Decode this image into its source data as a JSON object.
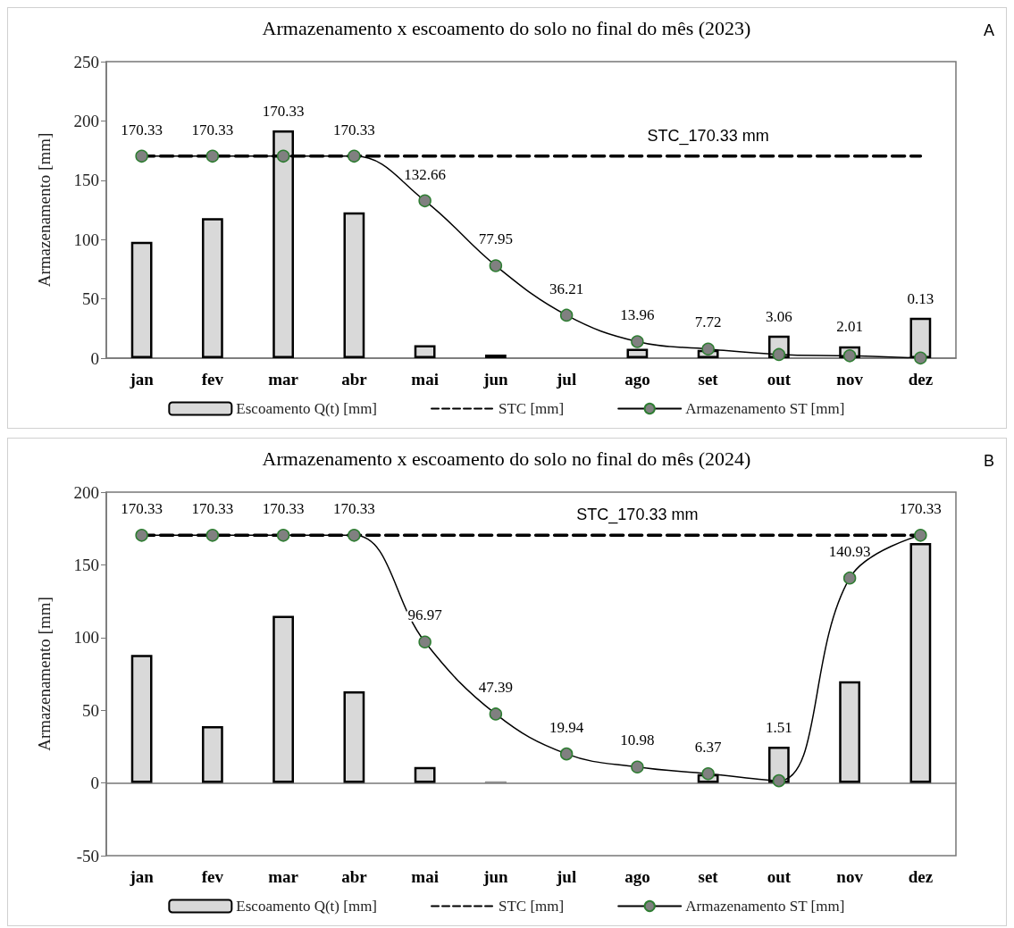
{
  "chart_data": [
    {
      "type": "bar",
      "title": "Armazenamento x escoamento do solo no final do mês (2023)",
      "ylabel": "Armazenamento [mm]",
      "categories": [
        "jan",
        "fev",
        "mar",
        "abr",
        "mai",
        "jun",
        "jul",
        "ago",
        "set",
        "out",
        "nov",
        "dez"
      ],
      "ylim": [
        0,
        250
      ],
      "yticks": [
        0,
        50,
        100,
        150,
        200,
        250
      ],
      "grid": false,
      "legend": "bottom",
      "series": [
        {
          "name": "Escoamento Q(t) [mm]",
          "color": "#d9d9d9",
          "values": [
            98,
            118,
            192,
            123,
            11,
            3,
            null,
            8,
            7,
            19,
            10,
            34
          ]
        },
        {
          "name": "STC [mm]",
          "type": "line",
          "color": "#000000",
          "line_style": "dashed",
          "marker": "none",
          "values": [
            170.33,
            170.33,
            170.33,
            170.33,
            170.33,
            170.33,
            170.33,
            170.33,
            170.33,
            170.33,
            170.33,
            170.33
          ]
        },
        {
          "name": "Armazenamento ST [mm]",
          "type": "line",
          "color": "#808080",
          "line_style": "solid",
          "marker": "circle",
          "values": [
            170.33,
            170.33,
            170.33,
            170.33,
            132.66,
            77.95,
            36.21,
            13.96,
            7.72,
            3.06,
            2.01,
            0.13
          ],
          "value_labels": [
            "170.33",
            "170.33",
            "170.33",
            "170.33",
            "132.66",
            "77.95",
            "36.21",
            "13.96",
            "7.72",
            "3.06",
            "2.01",
            "0.13"
          ]
        }
      ],
      "annotations": [
        {
          "text": "STC_170.33 mm",
          "x": "set",
          "y": 170.33
        },
        "A"
      ]
    },
    {
      "type": "bar",
      "title": "Armazenamento x escoamento do solo no final do mês (2024)",
      "ylabel": "Armazenamento [mm]",
      "categories": [
        "jan",
        "fev",
        "mar",
        "abr",
        "mai",
        "jun",
        "jul",
        "ago",
        "set",
        "out",
        "nov",
        "dez"
      ],
      "ylim": [
        -50,
        200
      ],
      "yticks": [
        -50,
        0,
        50,
        100,
        150,
        200
      ],
      "grid": false,
      "legend": "bottom",
      "series": [
        {
          "name": "Escoamento Q(t) [mm]",
          "color": "#d9d9d9",
          "values": [
            88,
            39,
            115,
            63,
            11,
            1,
            null,
            null,
            6,
            25,
            70,
            165
          ]
        },
        {
          "name": "STC [mm]",
          "type": "line",
          "color": "#000000",
          "line_style": "dashed",
          "marker": "none",
          "values": [
            170.33,
            170.33,
            170.33,
            170.33,
            170.33,
            170.33,
            170.33,
            170.33,
            170.33,
            170.33,
            170.33,
            170.33
          ]
        },
        {
          "name": "Armazenamento ST [mm]",
          "type": "line",
          "color": "#808080",
          "line_style": "solid",
          "marker": "circle",
          "values": [
            170.33,
            170.33,
            170.33,
            170.33,
            96.97,
            47.39,
            19.94,
            10.98,
            6.37,
            1.51,
            140.93,
            170.33
          ],
          "value_labels": [
            "170.33",
            "170.33",
            "170.33",
            "170.33",
            "96.97",
            "47.39",
            "19.94",
            "10.98",
            "6.37",
            "1.51",
            "140.93",
            "170.33"
          ]
        }
      ],
      "annotations": [
        {
          "text": "STC_170.33 mm",
          "x": "ago",
          "y": 170.33
        },
        "B"
      ]
    }
  ]
}
